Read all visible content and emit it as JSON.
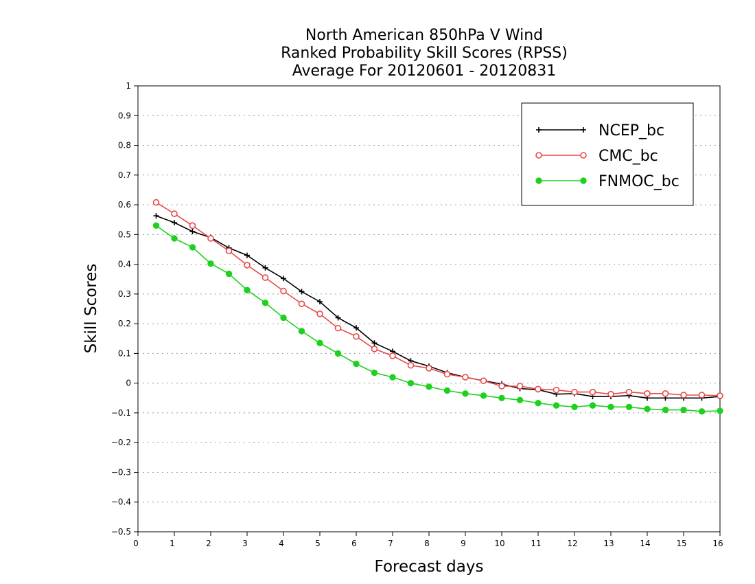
{
  "chart_data": {
    "type": "line",
    "title_lines": [
      "North American 850hPa V Wind",
      "Ranked Probability Skill Scores (RPSS)",
      "Average For 20120601 - 20120831"
    ],
    "xlabel": "Forecast days",
    "ylabel": "Skill Scores",
    "xlim": [
      0,
      16
    ],
    "ylim": [
      -0.5,
      1
    ],
    "x_ticks": [
      0,
      1,
      2,
      3,
      4,
      5,
      6,
      7,
      8,
      9,
      10,
      11,
      12,
      13,
      14,
      15,
      16
    ],
    "y_ticks": [
      -0.5,
      -0.4,
      -0.3,
      -0.2,
      -0.1,
      0,
      0.1,
      0.2,
      0.3,
      0.4,
      0.5,
      0.6,
      0.7,
      0.8,
      0.9,
      1
    ],
    "y_tick_labels": [
      "−0.5",
      "−0.4",
      "−0.3",
      "−0.2",
      "−0.1",
      "0",
      "0.1",
      "0.2",
      "0.3",
      "0.4",
      "0.5",
      "0.6",
      "0.7",
      "0.8",
      "0.9",
      "1"
    ],
    "grid": "horizontal dotted",
    "legend_position": "top-right",
    "x": [
      0.5,
      1,
      1.5,
      2,
      2.5,
      3,
      3.5,
      4,
      4.5,
      5,
      5.5,
      6,
      6.5,
      7,
      7.5,
      8,
      8.5,
      9,
      9.5,
      10,
      10.5,
      11,
      11.5,
      12,
      12.5,
      13,
      13.5,
      14,
      14.5,
      15,
      15.5,
      16
    ],
    "series": [
      {
        "name": "NCEP_bc",
        "color": "#000000",
        "marker": "plus",
        "values": [
          0.563,
          0.54,
          0.51,
          0.49,
          0.455,
          0.43,
          0.388,
          0.352,
          0.308,
          0.274,
          0.22,
          0.186,
          0.135,
          0.107,
          0.075,
          0.057,
          0.035,
          0.02,
          0.008,
          -0.003,
          -0.018,
          -0.022,
          -0.037,
          -0.035,
          -0.045,
          -0.045,
          -0.042,
          -0.05,
          -0.05,
          -0.05,
          -0.05,
          -0.045
        ]
      },
      {
        "name": "CMC_bc",
        "color": "#e84848",
        "marker": "open-circle",
        "values": [
          0.608,
          0.57,
          0.53,
          0.487,
          0.445,
          0.397,
          0.355,
          0.31,
          0.267,
          0.233,
          0.185,
          0.157,
          0.115,
          0.092,
          0.06,
          0.05,
          0.03,
          0.02,
          0.008,
          -0.01,
          -0.01,
          -0.02,
          -0.023,
          -0.03,
          -0.03,
          -0.037,
          -0.03,
          -0.035,
          -0.035,
          -0.04,
          -0.04,
          -0.042
        ]
      },
      {
        "name": "FNMOC_bc",
        "color": "#1fd01f",
        "marker": "filled-circle",
        "values": [
          0.53,
          0.487,
          0.457,
          0.402,
          0.368,
          0.313,
          0.27,
          0.22,
          0.175,
          0.135,
          0.1,
          0.065,
          0.035,
          0.02,
          0.0,
          -0.012,
          -0.025,
          -0.035,
          -0.042,
          -0.05,
          -0.057,
          -0.067,
          -0.075,
          -0.08,
          -0.075,
          -0.08,
          -0.08,
          -0.087,
          -0.09,
          -0.09,
          -0.095,
          -0.093
        ]
      }
    ]
  }
}
